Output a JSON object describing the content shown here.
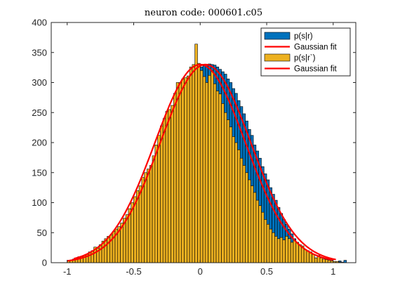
{
  "chart_data": {
    "type": "bar",
    "title": "neuron code: 000601.c05",
    "xlabel": "",
    "ylabel": "",
    "xlim": [
      -1.12,
      1.17
    ],
    "ylim": [
      0,
      400
    ],
    "xticks": [
      -1,
      -0.5,
      0,
      0.5,
      1
    ],
    "xtick_labels": [
      "-1",
      "-0.5",
      "0",
      "0.5",
      "1"
    ],
    "yticks": [
      0,
      50,
      100,
      150,
      200,
      250,
      300,
      350,
      400
    ],
    "ytick_labels": [
      "0",
      "50",
      "100",
      "150",
      "200",
      "250",
      "300",
      "350",
      "400"
    ],
    "bin_width": 0.02,
    "grid": false,
    "legend_position": "top-right",
    "colors": {
      "hist1": "#0072BD",
      "hist2": "#EDB120",
      "fit": "#FF0000",
      "edge": "#000000",
      "axes": "#262626"
    },
    "legend": [
      {
        "label": "p(s|r)",
        "kind": "patch",
        "color": "#0072BD"
      },
      {
        "label": "Gaussian fit",
        "kind": "line",
        "color": "#FF0000"
      },
      {
        "label": "p(s|r`)",
        "kind": "patch",
        "color": "#EDB120"
      },
      {
        "label": "Gaussian fit",
        "kind": "line",
        "color": "#FF0000"
      }
    ],
    "series": [
      {
        "name": "p(s|r)",
        "bin_centers": [
          -0.93,
          -0.91,
          -0.89,
          -0.87,
          -0.85,
          -0.83,
          -0.81,
          -0.79,
          -0.77,
          -0.75,
          -0.73,
          -0.71,
          -0.69,
          -0.67,
          -0.65,
          -0.63,
          -0.61,
          -0.59,
          -0.57,
          -0.55,
          -0.53,
          -0.51,
          -0.49,
          -0.47,
          -0.45,
          -0.43,
          -0.41,
          -0.39,
          -0.37,
          -0.35,
          -0.33,
          -0.31,
          -0.29,
          -0.27,
          -0.25,
          -0.23,
          -0.21,
          -0.19,
          -0.17,
          -0.15,
          -0.13,
          -0.11,
          -0.09,
          -0.07,
          -0.05,
          -0.03,
          -0.01,
          0.01,
          0.03,
          0.05,
          0.07,
          0.09,
          0.11,
          0.13,
          0.15,
          0.17,
          0.19,
          0.21,
          0.23,
          0.25,
          0.27,
          0.29,
          0.31,
          0.33,
          0.35,
          0.37,
          0.39,
          0.41,
          0.43,
          0.45,
          0.47,
          0.49,
          0.51,
          0.53,
          0.55,
          0.57,
          0.59,
          0.61,
          0.63,
          0.65,
          0.67,
          0.69,
          0.71,
          0.73,
          0.75,
          0.77,
          0.79,
          0.81,
          0.83,
          0.85,
          0.87,
          0.89,
          0.91,
          0.93,
          0.95,
          0.97,
          0.99,
          1.01,
          1.03,
          1.05,
          1.07,
          1.09
        ],
        "values": [
          3,
          5,
          4,
          6,
          8,
          7,
          10,
          12,
          14,
          15,
          19,
          22,
          24,
          28,
          33,
          38,
          44,
          48,
          56,
          64,
          70,
          80,
          90,
          98,
          108,
          118,
          128,
          140,
          150,
          165,
          175,
          190,
          200,
          212,
          225,
          238,
          248,
          260,
          268,
          280,
          288,
          296,
          304,
          310,
          316,
          320,
          324,
          326,
          328,
          330,
          331,
          330,
          329,
          326,
          322,
          318,
          314,
          306,
          300,
          290,
          282,
          270,
          260,
          248,
          236,
          222,
          212,
          196,
          186,
          174,
          160,
          148,
          138,
          125,
          114,
          104,
          92,
          82,
          72,
          64,
          56,
          48,
          40,
          34,
          28,
          24,
          20,
          16,
          13,
          10,
          8,
          6,
          5,
          4,
          3,
          2,
          2,
          1,
          2,
          3,
          1,
          4
        ]
      },
      {
        "name": "p(s|r`)",
        "bin_centers": [
          -0.99,
          -0.97,
          -0.95,
          -0.93,
          -0.91,
          -0.89,
          -0.87,
          -0.85,
          -0.83,
          -0.81,
          -0.79,
          -0.77,
          -0.75,
          -0.73,
          -0.71,
          -0.69,
          -0.67,
          -0.65,
          -0.63,
          -0.61,
          -0.59,
          -0.57,
          -0.55,
          -0.53,
          -0.51,
          -0.49,
          -0.47,
          -0.45,
          -0.43,
          -0.41,
          -0.39,
          -0.37,
          -0.35,
          -0.33,
          -0.31,
          -0.29,
          -0.27,
          -0.25,
          -0.23,
          -0.21,
          -0.19,
          -0.17,
          -0.15,
          -0.13,
          -0.11,
          -0.09,
          -0.07,
          -0.05,
          -0.03,
          -0.01,
          0.01,
          0.03,
          0.05,
          0.07,
          0.09,
          0.11,
          0.13,
          0.15,
          0.17,
          0.19,
          0.21,
          0.23,
          0.25,
          0.27,
          0.29,
          0.31,
          0.33,
          0.35,
          0.37,
          0.39,
          0.41,
          0.43,
          0.45,
          0.47,
          0.49,
          0.51,
          0.53,
          0.55,
          0.57,
          0.59,
          0.61,
          0.63,
          0.65,
          0.67,
          0.69,
          0.71,
          0.73,
          0.75,
          0.77,
          0.79,
          0.81,
          0.83,
          0.85,
          0.87,
          0.89,
          0.91,
          0.93,
          0.95,
          0.97,
          0.99,
          1.01,
          1.03,
          1.05,
          1.07
        ],
        "values": [
          3,
          4,
          6,
          8,
          10,
          10,
          12,
          14,
          18,
          20,
          26,
          24,
          30,
          36,
          40,
          44,
          46,
          52,
          56,
          60,
          66,
          74,
          80,
          90,
          100,
          110,
          120,
          128,
          142,
          150,
          156,
          162,
          178,
          196,
          212,
          228,
          240,
          252,
          255,
          262,
          282,
          300,
          300,
          306,
          308,
          311,
          326,
          330,
          364,
          332,
          320,
          310,
          300,
          312,
          320,
          298,
          286,
          281,
          265,
          250,
          238,
          226,
          210,
          200,
          188,
          174,
          162,
          150,
          138,
          128,
          117,
          104,
          95,
          84,
          72,
          64,
          56,
          50,
          44,
          40,
          42,
          38,
          44,
          40,
          34,
          38,
          34,
          30,
          28,
          22,
          20,
          18,
          14,
          8,
          12,
          8,
          6,
          5,
          4,
          3,
          2,
          2,
          1,
          0
        ]
      },
      {
        "name": "Gaussian fit",
        "gaussian": {
          "amplitude": 330,
          "mean": 0.0,
          "sigma": 0.34
        },
        "x_range": [
          -0.95,
          1.0
        ]
      },
      {
        "name": "Gaussian fit",
        "gaussian": {
          "amplitude": 330,
          "mean": 0.04,
          "sigma": 0.34
        },
        "x_range": [
          -1.0,
          1.02
        ]
      }
    ]
  }
}
